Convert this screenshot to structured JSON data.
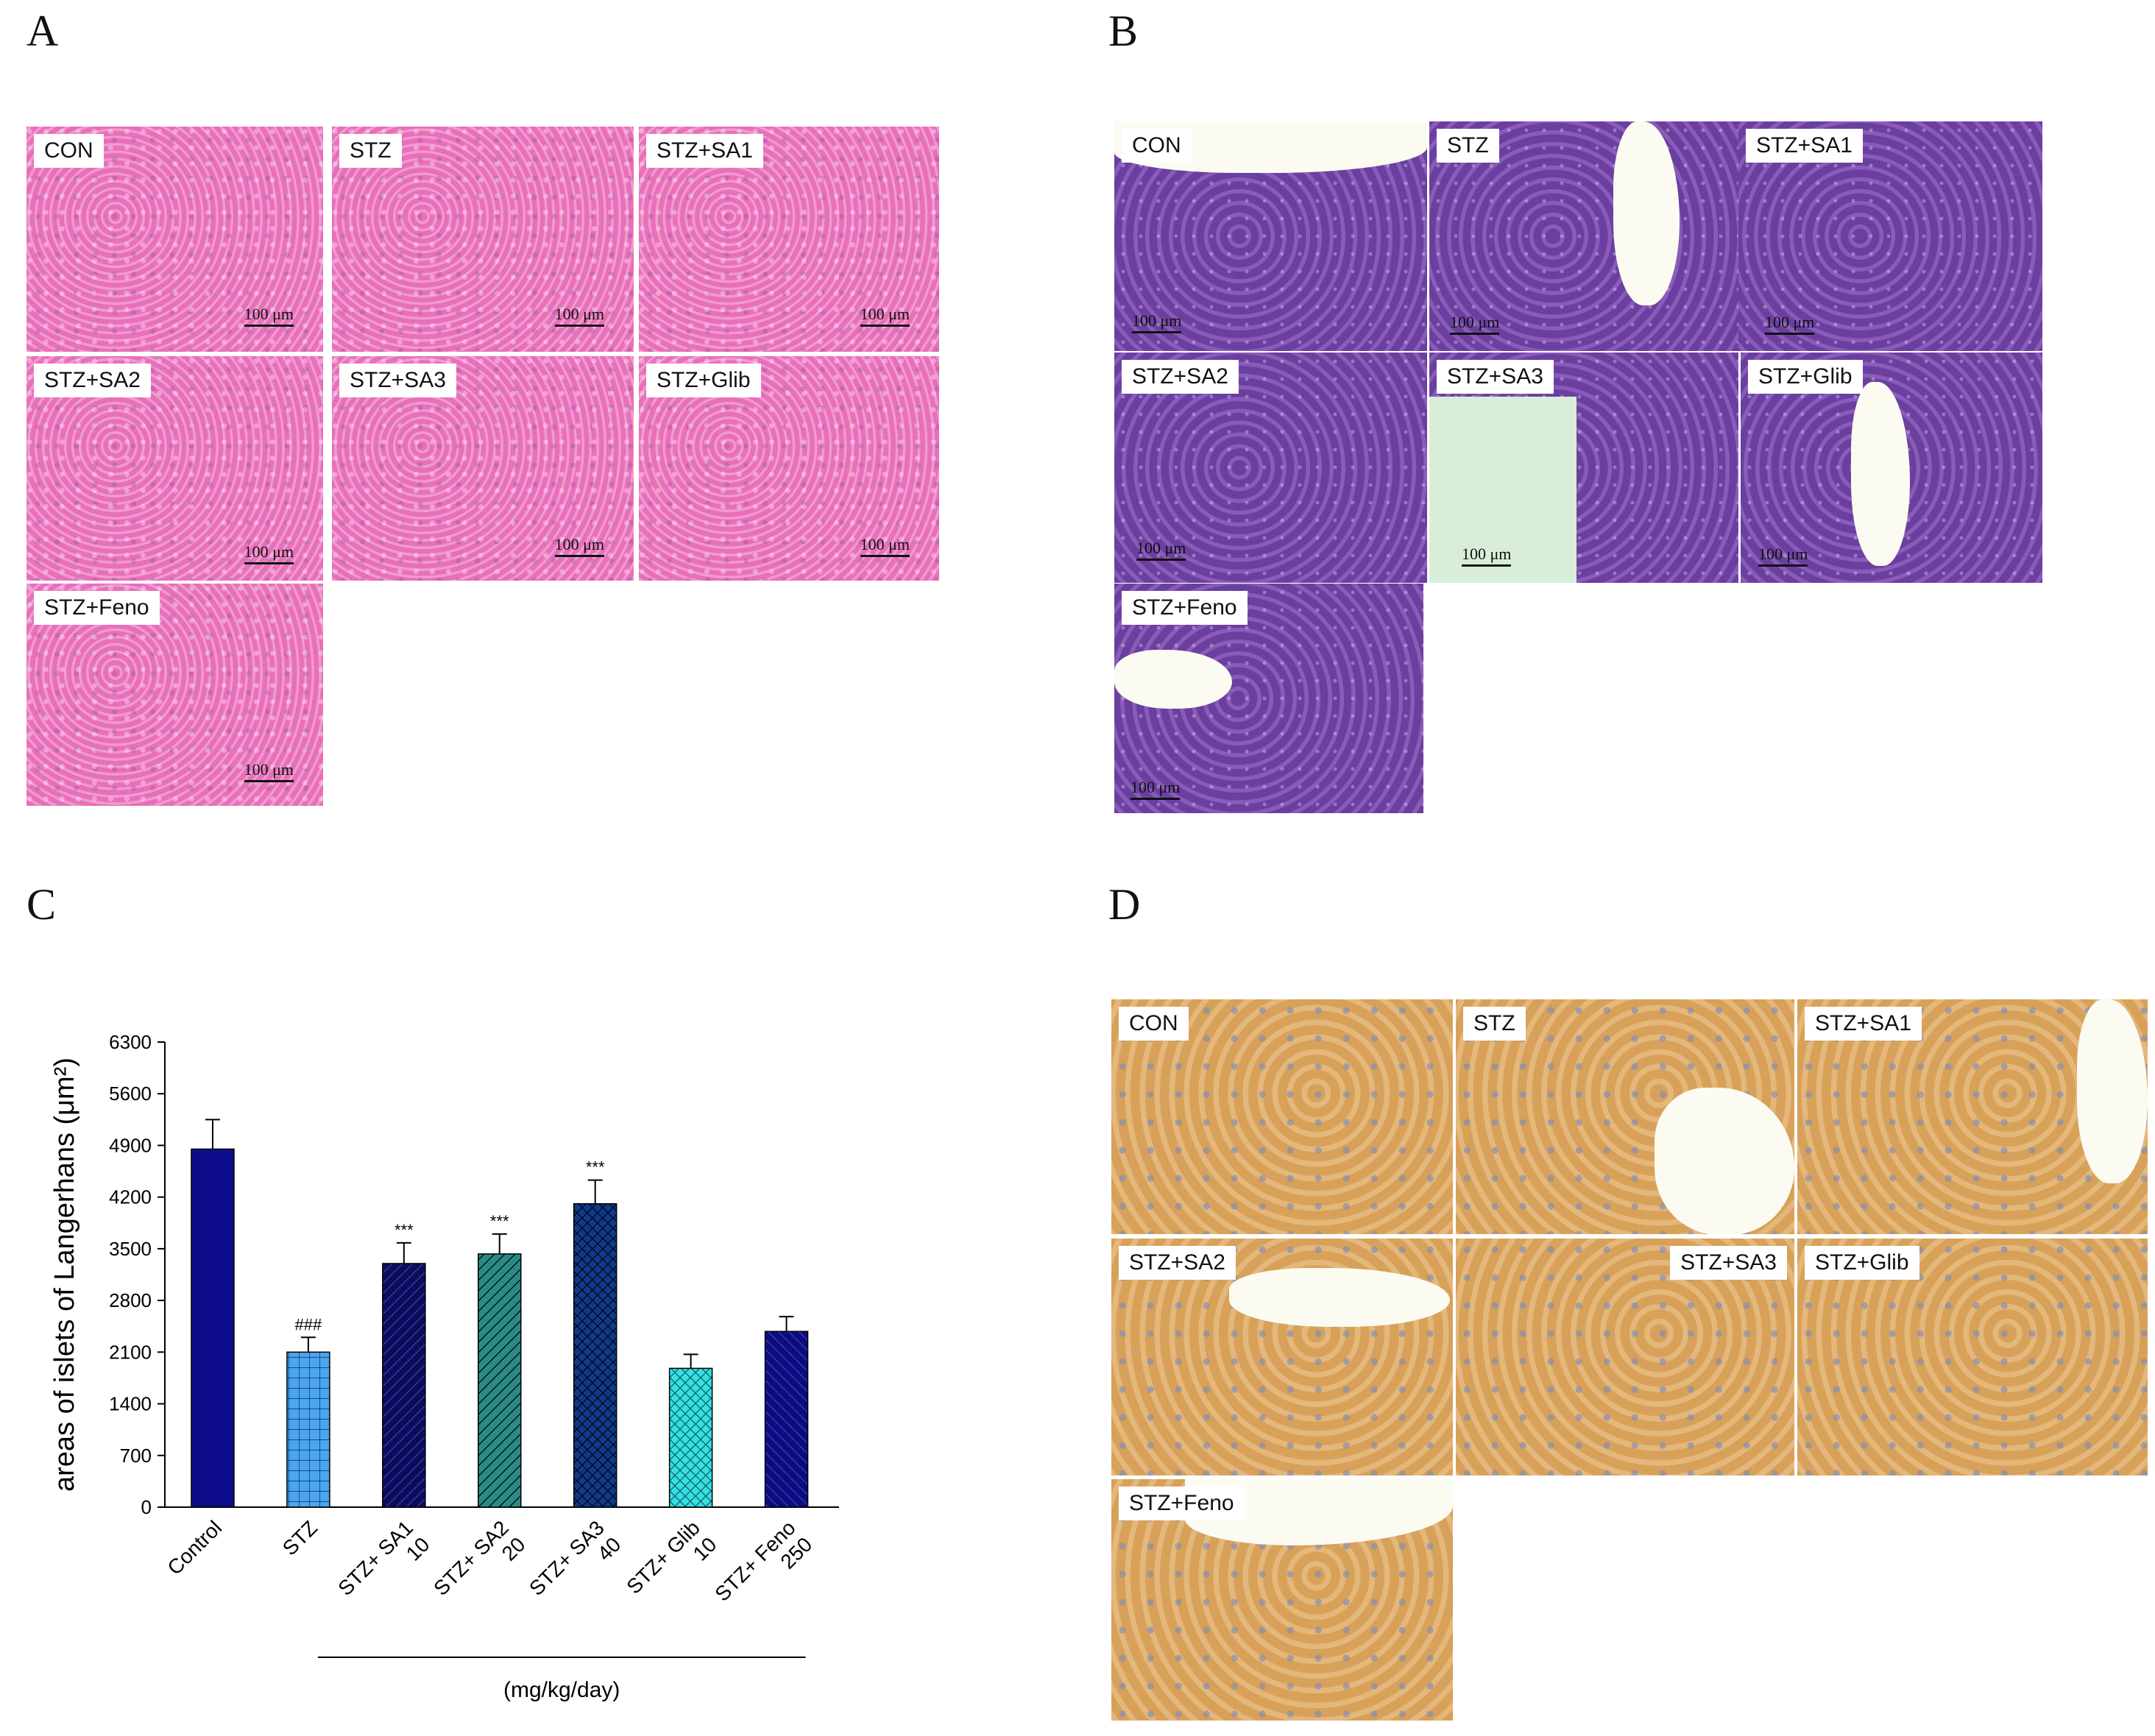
{
  "panels": {
    "A": {
      "letter": "A",
      "scale_label": "100 μm",
      "tiles": [
        "CON",
        "STZ",
        "STZ+SA1",
        "STZ+SA2",
        "STZ+SA3",
        "STZ+Glib",
        "STZ+Feno"
      ]
    },
    "B": {
      "letter": "B",
      "scale_label": "100 μm",
      "tiles": [
        "CON",
        "STZ",
        "STZ+SA1",
        "STZ+SA2",
        "STZ+SA3",
        "STZ+Glib",
        "STZ+Feno"
      ]
    },
    "C": {
      "letter": "C"
    },
    "D": {
      "letter": "D",
      "tiles": [
        "CON",
        "STZ",
        "STZ+SA1",
        "STZ+SA2",
        "STZ+SA3",
        "STZ+Glib",
        "STZ+Feno"
      ]
    }
  },
  "chart_data": {
    "type": "bar",
    "title": "",
    "ylabel": "areas of islets of Langerhans (μm²)",
    "xlabel": "(mg/kg/day)",
    "ylim": [
      0,
      6300
    ],
    "yticks": [
      "0",
      "700",
      "1400",
      "2100",
      "2800",
      "3500",
      "4200",
      "4900",
      "5600",
      "6300"
    ],
    "categories": [
      {
        "line1": "Control",
        "line2": ""
      },
      {
        "line1": "STZ",
        "line2": ""
      },
      {
        "line1": "STZ+ SA1",
        "line2": "10"
      },
      {
        "line1": "STZ+ SA2",
        "line2": "20"
      },
      {
        "line1": "STZ+ SA3",
        "line2": "40"
      },
      {
        "line1": "STZ+ Glib",
        "line2": "10"
      },
      {
        "line1": "STZ+ Feno",
        "line2": "250"
      }
    ],
    "values": [
      4850,
      2100,
      3300,
      3430,
      4110,
      1880,
      2380
    ],
    "errors": [
      400,
      200,
      280,
      270,
      320,
      190,
      200
    ],
    "annotations": [
      "",
      "###",
      "***",
      "***",
      "***",
      "",
      ""
    ],
    "colors": [
      "#0c0c8a",
      "#4aa6ee",
      "#0c0c5c",
      "#2a8a86",
      "#0f3a8a",
      "#36e0e0",
      "#0c0c80"
    ],
    "patterns": [
      "solid",
      "grid",
      "diag-fine",
      "diag",
      "cross",
      "cross-wide",
      "diag-back"
    ]
  }
}
